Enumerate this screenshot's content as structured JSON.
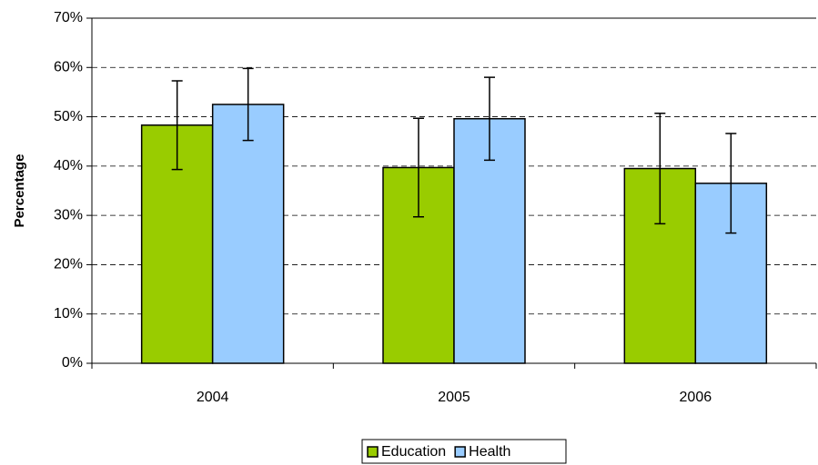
{
  "chart_data": {
    "type": "bar",
    "y_label": "Percentage",
    "categories": [
      "2004",
      "2005",
      "2006"
    ],
    "series": [
      {
        "name": "Education",
        "color": "#99cc00",
        "values": [
          48.3,
          39.7,
          39.5
        ],
        "errors": [
          9,
          10,
          11.2
        ]
      },
      {
        "name": "Health",
        "color": "#99ccff",
        "values": [
          52.5,
          49.6,
          36.5
        ],
        "errors": [
          7.3,
          8.4,
          10.1
        ]
      }
    ],
    "ylim": [
      0,
      70
    ],
    "yticks": [
      {
        "value": 0,
        "label": "0%"
      },
      {
        "value": 10,
        "label": "10%"
      },
      {
        "value": 20,
        "label": "20%"
      },
      {
        "value": 30,
        "label": "30%"
      },
      {
        "value": 40,
        "label": "40%"
      },
      {
        "value": 50,
        "label": "50%"
      },
      {
        "value": 60,
        "label": "60%"
      },
      {
        "value": 70,
        "label": "70%"
      }
    ],
    "grid": true,
    "legend": "bottom"
  }
}
